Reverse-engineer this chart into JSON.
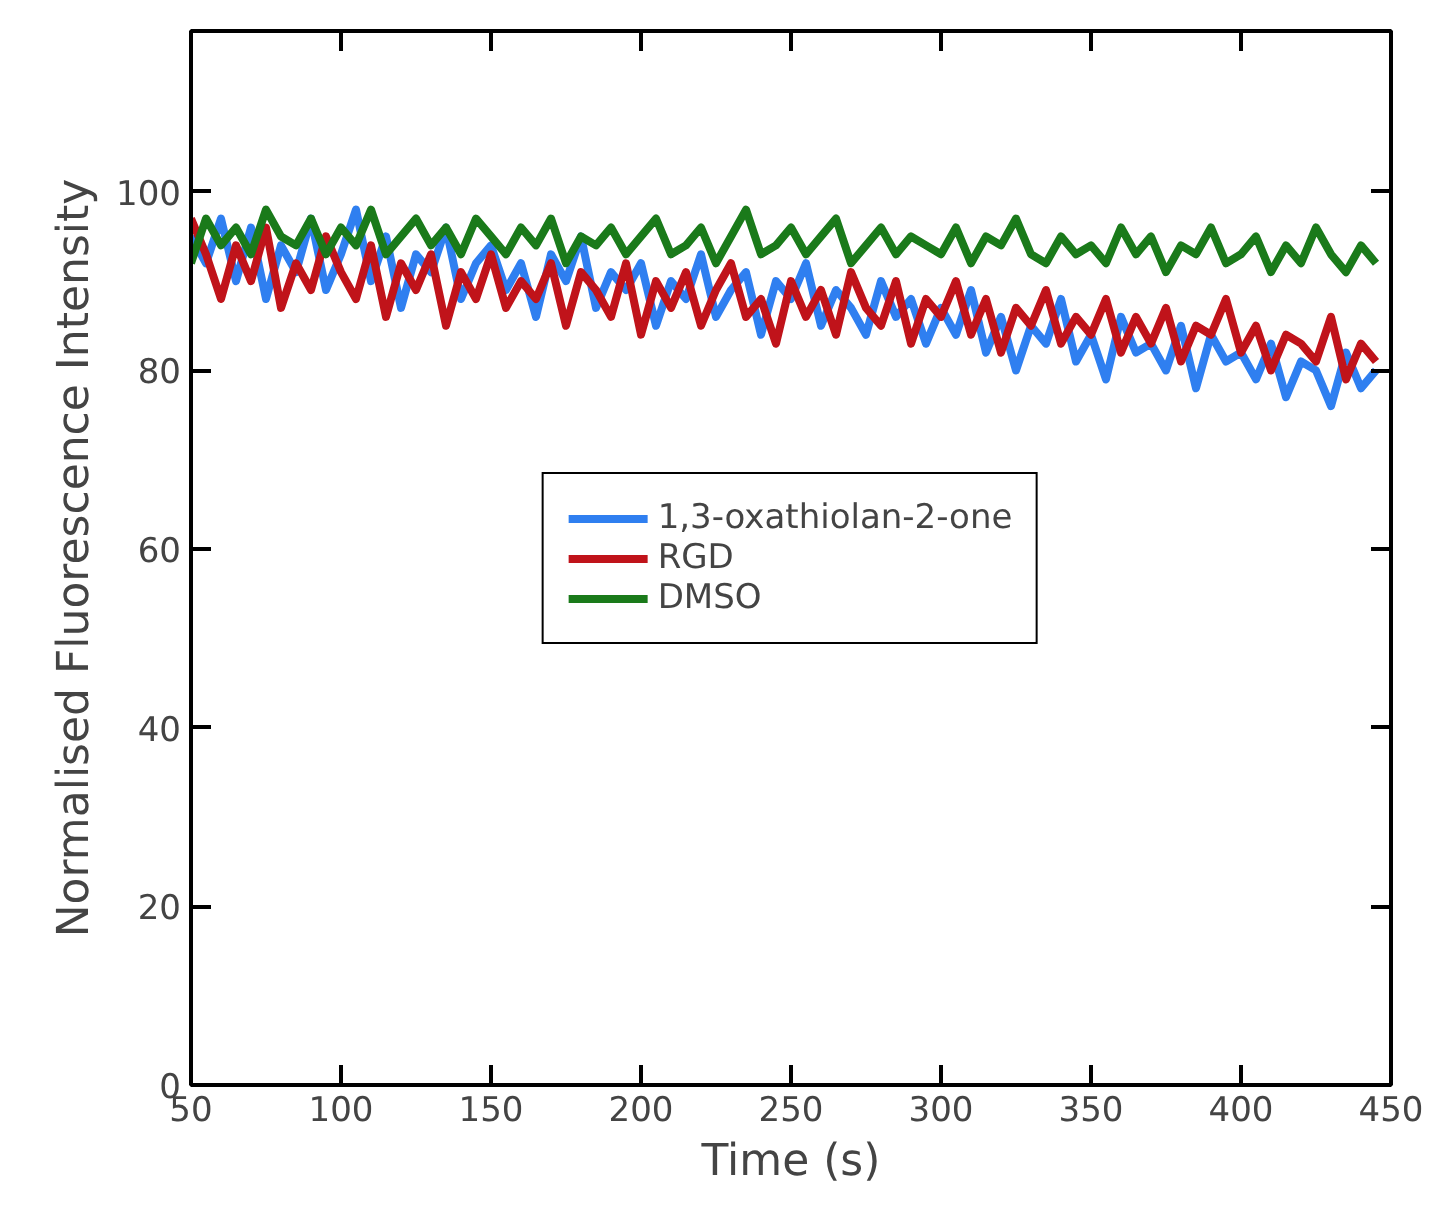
{
  "chart_data": {
    "type": "line",
    "xlabel": "Time (s)",
    "ylabel": "Normalised Fluorescence Intensity",
    "x": [
      50,
      55,
      60,
      65,
      70,
      75,
      80,
      85,
      90,
      95,
      100,
      105,
      110,
      115,
      120,
      125,
      130,
      135,
      140,
      145,
      150,
      155,
      160,
      165,
      170,
      175,
      180,
      185,
      190,
      195,
      200,
      205,
      210,
      215,
      220,
      225,
      230,
      235,
      240,
      245,
      250,
      255,
      260,
      265,
      270,
      275,
      280,
      285,
      290,
      295,
      300,
      305,
      310,
      315,
      320,
      325,
      330,
      335,
      340,
      345,
      350,
      355,
      360,
      365,
      370,
      375,
      380,
      385,
      390,
      395,
      400,
      405,
      410,
      415,
      420,
      425,
      430,
      435,
      440,
      445
    ],
    "series": [
      {
        "name": "1,3-oxathiolan-2-one",
        "color": "#2f7ff0",
        "values": [
          95,
          92,
          97,
          90,
          96,
          88,
          94,
          91,
          97,
          89,
          93,
          98,
          90,
          95,
          87,
          93,
          91,
          96,
          88,
          92,
          94,
          89,
          92,
          86,
          93,
          90,
          95,
          87,
          91,
          89,
          92,
          85,
          90,
          88,
          93,
          86,
          89,
          91,
          84,
          90,
          88,
          92,
          85,
          89,
          87,
          84,
          90,
          86,
          88,
          83,
          87,
          84,
          89,
          82,
          86,
          80,
          85,
          83,
          88,
          81,
          84,
          79,
          86,
          82,
          83,
          80,
          85,
          78,
          84,
          81,
          82,
          79,
          83,
          77,
          81,
          80,
          76,
          82,
          78,
          80
        ]
      },
      {
        "name": "RGD",
        "color": "#c0131a",
        "values": [
          97,
          93,
          88,
          94,
          90,
          96,
          87,
          92,
          89,
          95,
          91,
          88,
          94,
          86,
          92,
          89,
          93,
          85,
          91,
          88,
          93,
          87,
          90,
          88,
          92,
          85,
          91,
          89,
          86,
          92,
          84,
          90,
          87,
          91,
          85,
          89,
          92,
          86,
          88,
          83,
          90,
          86,
          89,
          84,
          91,
          87,
          85,
          90,
          83,
          88,
          86,
          90,
          84,
          88,
          82,
          87,
          85,
          89,
          83,
          86,
          84,
          88,
          82,
          86,
          83,
          87,
          81,
          85,
          84,
          88,
          82,
          85,
          80,
          84,
          83,
          81,
          86,
          79,
          83,
          81
        ]
      },
      {
        "name": "DMSO",
        "color": "#1a7a1a",
        "values": [
          92,
          97,
          94,
          96,
          93,
          98,
          95,
          94,
          97,
          93,
          96,
          94,
          98,
          93,
          95,
          97,
          94,
          96,
          93,
          97,
          95,
          93,
          96,
          94,
          97,
          92,
          95,
          94,
          96,
          93,
          95,
          97,
          93,
          94,
          96,
          92,
          95,
          98,
          93,
          94,
          96,
          93,
          95,
          97,
          92,
          94,
          96,
          93,
          95,
          94,
          93,
          96,
          92,
          95,
          94,
          97,
          93,
          92,
          95,
          93,
          94,
          92,
          96,
          93,
          95,
          91,
          94,
          93,
          96,
          92,
          93,
          95,
          91,
          94,
          92,
          96,
          93,
          91,
          94,
          92
        ]
      }
    ],
    "xlim": [
      50,
      450
    ],
    "xticks": [
      50,
      100,
      150,
      200,
      250,
      300,
      350,
      400,
      450
    ],
    "ylim": [
      0,
      118
    ],
    "yticks": [
      0,
      20,
      40,
      60,
      80,
      100
    ],
    "grid": false,
    "legend": "center",
    "line_style": "solid",
    "marker": "none"
  }
}
